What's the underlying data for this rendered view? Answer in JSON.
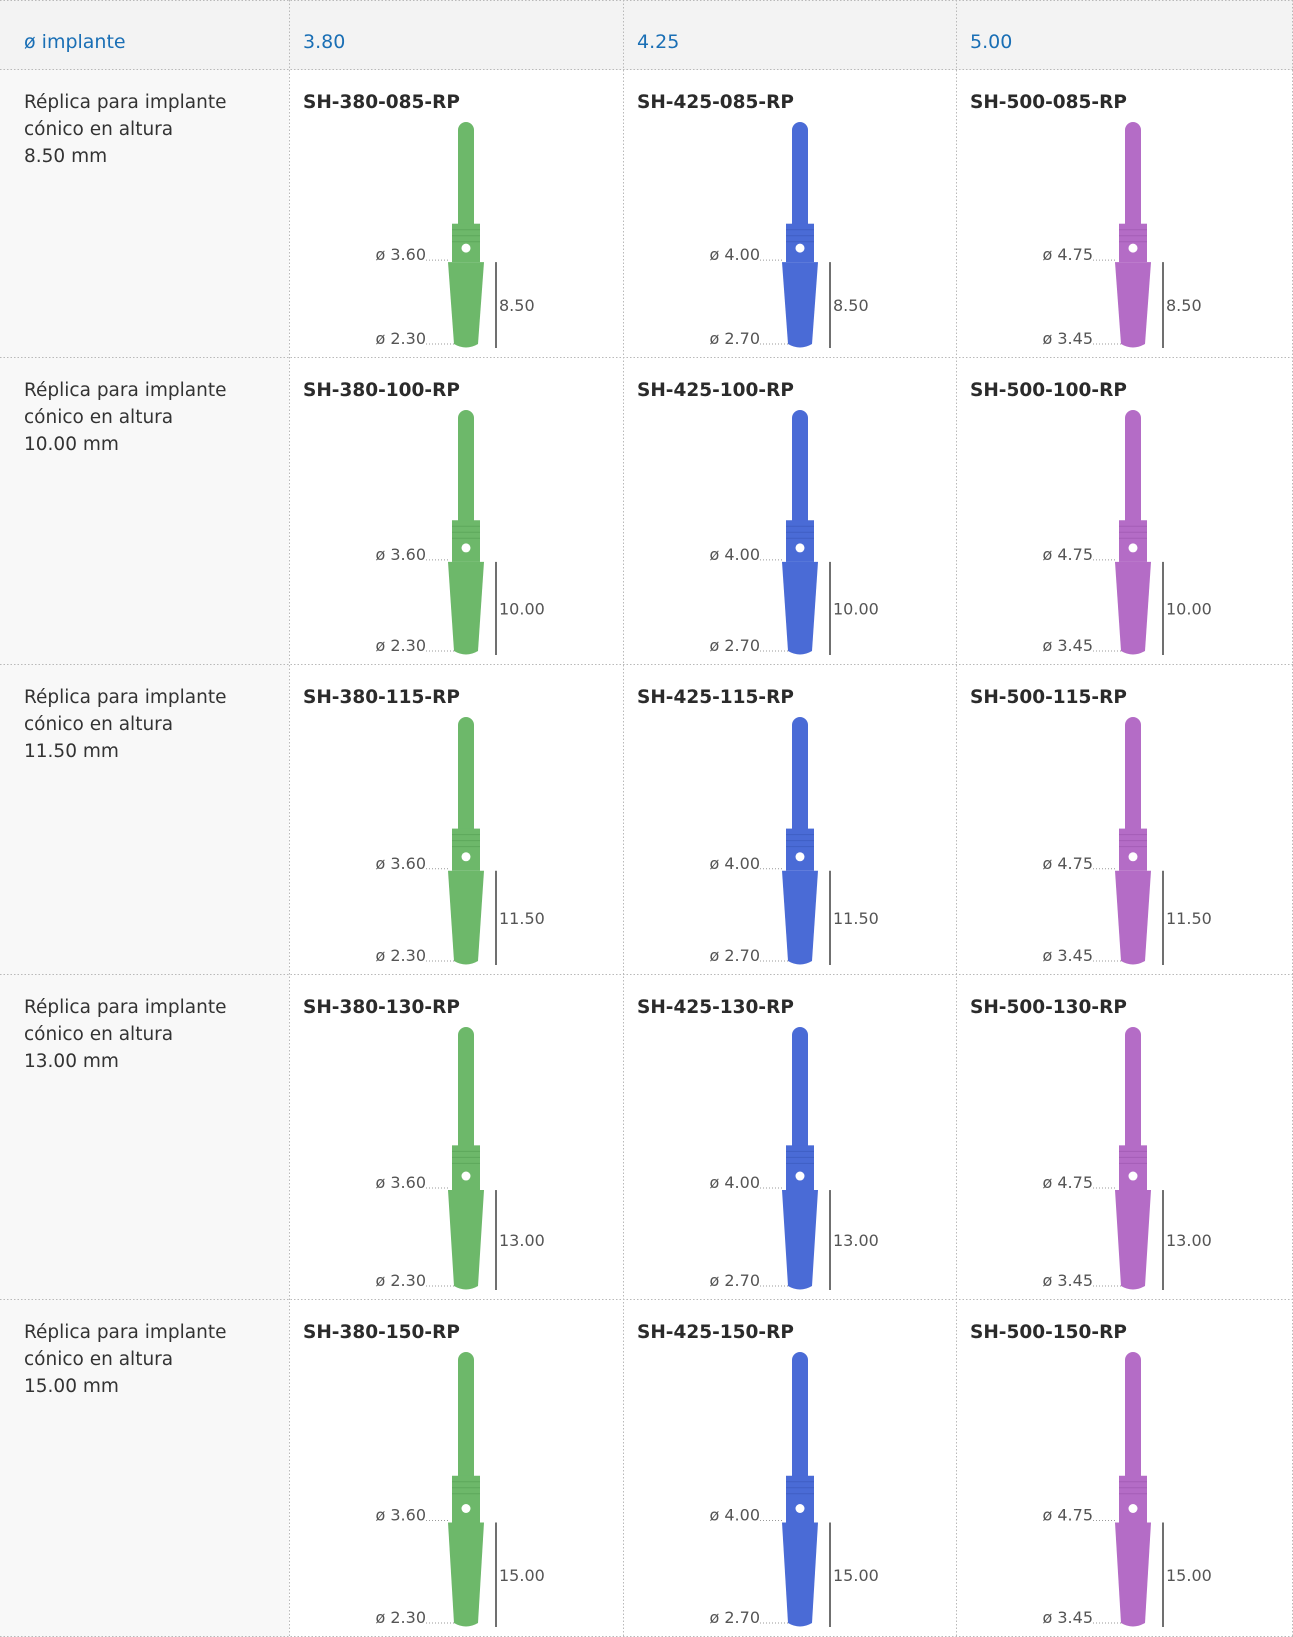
{
  "header": {
    "label": "ø implante",
    "diameters": [
      "3.80",
      "4.25",
      "5.00"
    ]
  },
  "rows": [
    {
      "label": [
        "Réplica para implante",
        "cónico en altura",
        "8.50 mm"
      ],
      "cells": [
        {
          "code": "SH-380-085-RP",
          "top": "ø 3.60",
          "bottom": "ø 2.30",
          "height": "8.50"
        },
        {
          "code": "SH-425-085-RP",
          "top": "ø 4.00",
          "bottom": "ø 2.70",
          "height": "8.50"
        },
        {
          "code": "SH-500-085-RP",
          "top": "ø 4.75",
          "bottom": "ø 3.45",
          "height": "8.50"
        }
      ]
    },
    {
      "label": [
        "Réplica para implante",
        "cónico en altura",
        "10.00 mm"
      ],
      "cells": [
        {
          "code": "SH-380-100-RP",
          "top": "ø 3.60",
          "bottom": "ø 2.30",
          "height": "10.00"
        },
        {
          "code": "SH-425-100-RP",
          "top": "ø 4.00",
          "bottom": "ø 2.70",
          "height": "10.00"
        },
        {
          "code": "SH-500-100-RP",
          "top": "ø 4.75",
          "bottom": "ø 3.45",
          "height": "10.00"
        }
      ]
    },
    {
      "label": [
        "Réplica para implante",
        "cónico en altura",
        "11.50 mm"
      ],
      "cells": [
        {
          "code": "SH-380-115-RP",
          "top": "ø 3.60",
          "bottom": "ø 2.30",
          "height": "11.50"
        },
        {
          "code": "SH-425-115-RP",
          "top": "ø 4.00",
          "bottom": "ø 2.70",
          "height": "11.50"
        },
        {
          "code": "SH-500-115-RP",
          "top": "ø 4.75",
          "bottom": "ø 3.45",
          "height": "11.50"
        }
      ]
    },
    {
      "label": [
        "Réplica para implante",
        "cónico en altura",
        "13.00 mm"
      ],
      "cells": [
        {
          "code": "SH-380-130-RP",
          "top": "ø 3.60",
          "bottom": "ø 2.30",
          "height": "13.00"
        },
        {
          "code": "SH-425-130-RP",
          "top": "ø 4.00",
          "bottom": "ø 2.70",
          "height": "13.00"
        },
        {
          "code": "SH-500-130-RP",
          "top": "ø 4.75",
          "bottom": "ø 3.45",
          "height": "13.00"
        }
      ]
    },
    {
      "label": [
        "Réplica para implante",
        "cónico en altura",
        "15.00 mm"
      ],
      "cells": [
        {
          "code": "SH-380-150-RP",
          "top": "ø 3.60",
          "bottom": "ø 2.30",
          "height": "15.00"
        },
        {
          "code": "SH-425-150-RP",
          "top": "ø 4.00",
          "bottom": "ø 2.70",
          "height": "15.00"
        },
        {
          "code": "SH-500-150-RP",
          "top": "ø 4.75",
          "bottom": "ø 3.45",
          "height": "15.00"
        }
      ]
    }
  ]
}
